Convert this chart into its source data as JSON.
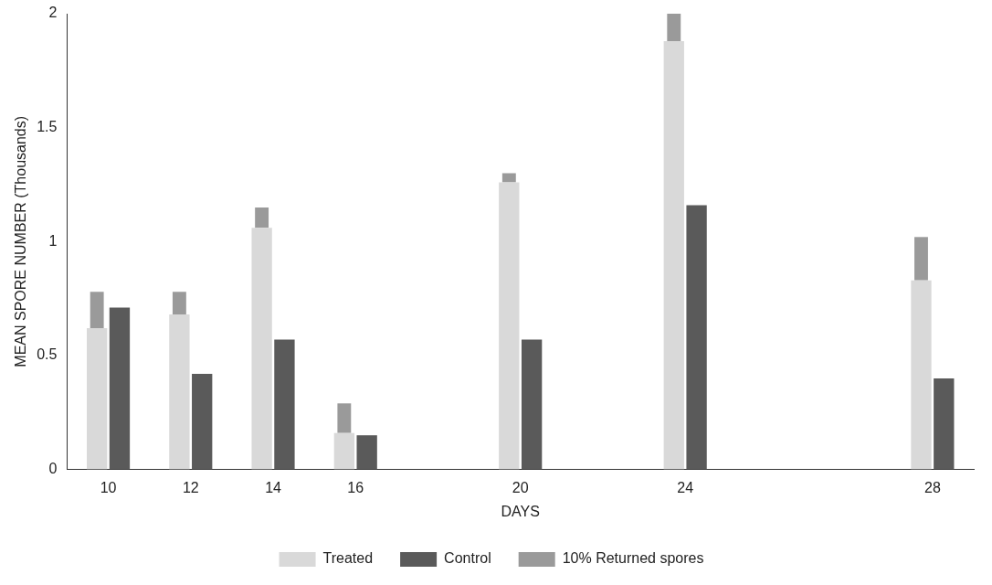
{
  "chart_data": {
    "type": "bar",
    "xlabel": "DAYS",
    "ylabel": "MEAN SPORE NUMBER (Thousands)",
    "categories": [
      "10",
      "12",
      "14",
      "16",
      null,
      "20",
      null,
      "24",
      null,
      null,
      "28"
    ],
    "series": [
      {
        "name": "Treated",
        "color": "#d9d9d9",
        "values": [
          0.62,
          0.68,
          1.06,
          0.16,
          null,
          1.26,
          null,
          1.88,
          null,
          null,
          0.83
        ]
      },
      {
        "name": "Control",
        "color": "#5a5a5a",
        "values": [
          0.71,
          0.42,
          0.57,
          0.15,
          null,
          0.57,
          null,
          1.16,
          null,
          null,
          0.4
        ]
      },
      {
        "name": "10% Returned spores",
        "color": "#9a9a9a",
        "base": [
          0.62,
          0.68,
          1.06,
          0.16,
          null,
          1.26,
          null,
          1.88,
          null,
          null,
          0.83
        ],
        "values": [
          0.16,
          0.1,
          0.09,
          0.13,
          null,
          0.04,
          null,
          0.13,
          null,
          null,
          0.19
        ]
      }
    ],
    "ylim": [
      0,
      2
    ],
    "yticks": [
      0,
      0.5,
      1,
      1.5,
      2
    ],
    "grid": false,
    "legend": "bottom"
  }
}
